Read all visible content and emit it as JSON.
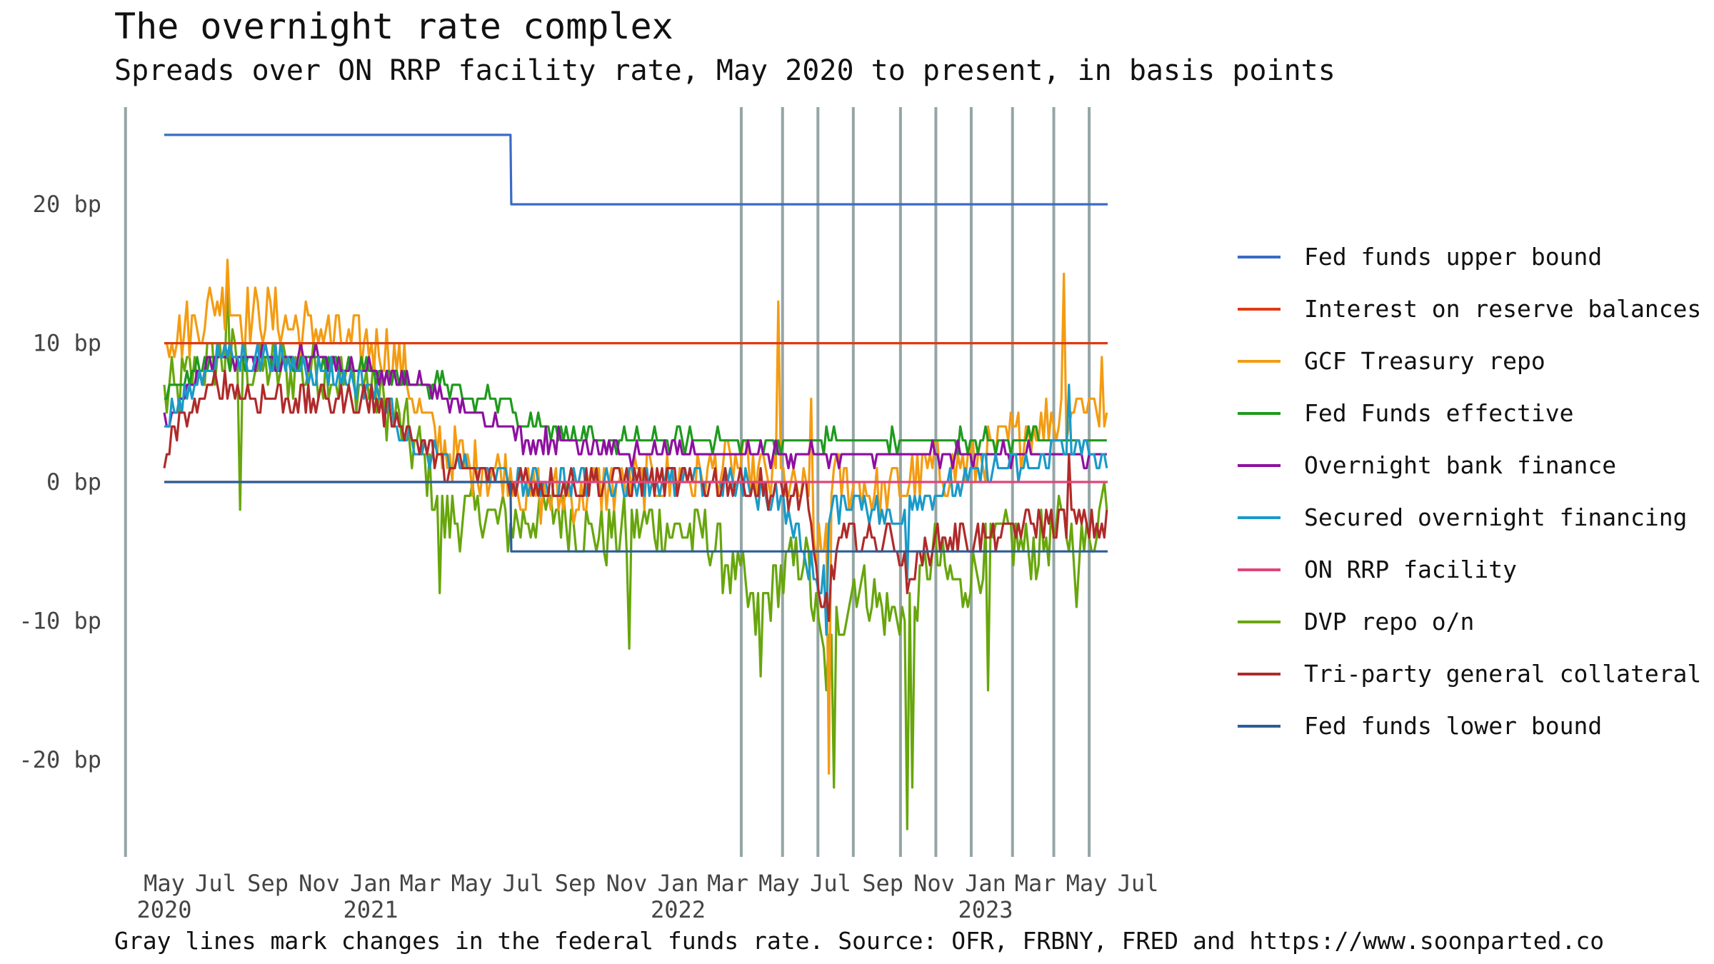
{
  "title": "The overnight rate complex",
  "subtitle": "Spreads over ON RRP facility rate, May 2020 to present, in basis points",
  "caption": "Gray lines mark changes in the federal funds rate. Source: OFR, FRBNY, FRED and https://www.soonparted.co",
  "colors": {
    "fomc_line": "#95a5a6",
    "axis_text": "#444444"
  },
  "chart_data": {
    "type": "line",
    "y_unit_suffix": " bp",
    "ylim": [
      -27,
      27
    ],
    "yticks": [
      20,
      10,
      0,
      -10,
      -20
    ],
    "x_start": "2020-05-01",
    "x_end": "2023-07-15",
    "data_end": "2023-05-26",
    "xticks": [
      {
        "date": "2020-05-01",
        "label": "May",
        "year": "2020"
      },
      {
        "date": "2020-07-01",
        "label": "Jul"
      },
      {
        "date": "2020-09-01",
        "label": "Sep"
      },
      {
        "date": "2020-11-01",
        "label": "Nov"
      },
      {
        "date": "2021-01-01",
        "label": "Jan",
        "year": "2021"
      },
      {
        "date": "2021-03-01",
        "label": "Mar"
      },
      {
        "date": "2021-05-01",
        "label": "May"
      },
      {
        "date": "2021-07-01",
        "label": "Jul"
      },
      {
        "date": "2021-09-01",
        "label": "Sep"
      },
      {
        "date": "2021-11-01",
        "label": "Nov"
      },
      {
        "date": "2022-01-01",
        "label": "Jan",
        "year": "2022"
      },
      {
        "date": "2022-03-01",
        "label": "Mar"
      },
      {
        "date": "2022-05-01",
        "label": "May"
      },
      {
        "date": "2022-07-01",
        "label": "Jul"
      },
      {
        "date": "2022-09-01",
        "label": "Sep"
      },
      {
        "date": "2022-11-01",
        "label": "Nov"
      },
      {
        "date": "2023-01-01",
        "label": "Jan",
        "year": "2023"
      },
      {
        "date": "2023-03-01",
        "label": "Mar"
      },
      {
        "date": "2023-05-01",
        "label": "May"
      },
      {
        "date": "2023-07-01",
        "label": "Jul"
      }
    ],
    "fomc_dates": [
      "2020-03-16",
      "2022-03-17",
      "2022-05-05",
      "2022-06-16",
      "2022-07-28",
      "2022-09-22",
      "2022-11-03",
      "2022-12-15",
      "2023-02-02",
      "2023-03-23",
      "2023-05-04"
    ],
    "legend_position": "right",
    "grid": false,
    "series": [
      {
        "name": "Fed funds upper bound",
        "color": "#3a6bc4",
        "kind": "step",
        "points": [
          [
            "2020-05-01",
            25
          ],
          [
            "2021-06-16",
            25
          ],
          [
            "2021-06-17",
            20
          ],
          [
            "2023-05-26",
            20
          ]
        ]
      },
      {
        "name": "Interest on reserve balances",
        "color": "#dd3a12",
        "kind": "step",
        "points": [
          [
            "2020-05-01",
            10
          ],
          [
            "2023-05-26",
            10
          ]
        ]
      },
      {
        "name": "GCF Treasury repo",
        "color": "#f39c12",
        "kind": "noisy",
        "points": [
          [
            "2020-05-01",
            11
          ],
          [
            "2020-06-01",
            11
          ],
          [
            "2020-07-01",
            13
          ],
          [
            "2020-08-01",
            12
          ],
          [
            "2020-09-01",
            12
          ],
          [
            "2020-10-01",
            11
          ],
          [
            "2020-11-01",
            11
          ],
          [
            "2020-12-01",
            10
          ],
          [
            "2021-01-01",
            10
          ],
          [
            "2021-02-01",
            9
          ],
          [
            "2021-03-01",
            5
          ],
          [
            "2021-04-01",
            2
          ],
          [
            "2021-05-01",
            1
          ],
          [
            "2021-06-15",
            1
          ],
          [
            "2021-07-01",
            -1
          ],
          [
            "2021-09-01",
            -1
          ],
          [
            "2021-11-01",
            0
          ],
          [
            "2022-01-01",
            0
          ],
          [
            "2022-03-01",
            1
          ],
          [
            "2022-05-01",
            0
          ],
          [
            "2022-06-01",
            -1
          ],
          [
            "2022-06-20",
            -6
          ],
          [
            "2022-07-01",
            0
          ],
          [
            "2022-08-01",
            0
          ],
          [
            "2022-09-01",
            -1
          ],
          [
            "2022-10-01",
            0
          ],
          [
            "2022-11-01",
            1
          ],
          [
            "2022-12-01",
            1
          ],
          [
            "2023-01-01",
            2
          ],
          [
            "2023-02-01",
            3
          ],
          [
            "2023-03-01",
            4
          ],
          [
            "2023-04-01",
            5
          ],
          [
            "2023-05-01",
            6
          ],
          [
            "2023-05-26",
            5
          ]
        ],
        "noise": 2.0,
        "spikes": [
          [
            "2020-07-15",
            16
          ],
          [
            "2022-05-01",
            13
          ],
          [
            "2022-06-30",
            -21
          ],
          [
            "2022-06-10",
            6
          ],
          [
            "2023-04-05",
            15
          ],
          [
            "2023-05-20",
            9
          ]
        ]
      },
      {
        "name": "Fed Funds effective",
        "color": "#1e9a1e",
        "kind": "noisy",
        "points": [
          [
            "2020-05-01",
            6
          ],
          [
            "2020-06-01",
            8
          ],
          [
            "2020-07-01",
            9
          ],
          [
            "2020-09-01",
            9
          ],
          [
            "2020-11-01",
            9
          ],
          [
            "2021-01-01",
            8
          ],
          [
            "2021-03-01",
            7
          ],
          [
            "2021-04-01",
            7
          ],
          [
            "2021-05-01",
            6
          ],
          [
            "2021-06-15",
            6
          ],
          [
            "2021-06-17",
            5
          ],
          [
            "2021-08-01",
            4
          ],
          [
            "2021-09-15",
            3
          ],
          [
            "2021-11-01",
            3
          ],
          [
            "2022-03-01",
            3
          ],
          [
            "2023-05-26",
            3
          ]
        ],
        "noise": 0.6,
        "spikes": []
      },
      {
        "name": "Overnight bank finance",
        "color": "#8e10a0",
        "kind": "noisy",
        "points": [
          [
            "2020-05-01",
            4
          ],
          [
            "2020-06-01",
            7
          ],
          [
            "2020-07-01",
            9
          ],
          [
            "2020-09-01",
            9
          ],
          [
            "2020-11-01",
            9
          ],
          [
            "2021-01-01",
            8
          ],
          [
            "2021-03-01",
            7
          ],
          [
            "2021-05-01",
            5
          ],
          [
            "2021-06-17",
            4
          ],
          [
            "2021-07-01",
            3
          ],
          [
            "2021-09-01",
            3
          ],
          [
            "2021-11-01",
            2
          ],
          [
            "2022-03-01",
            2
          ],
          [
            "2023-05-26",
            2
          ]
        ],
        "noise": 0.6,
        "spikes": []
      },
      {
        "name": "Secured overnight financing",
        "color": "#1a9ac8",
        "kind": "noisy",
        "points": [
          [
            "2020-05-01",
            4
          ],
          [
            "2020-07-01",
            9
          ],
          [
            "2020-09-01",
            9
          ],
          [
            "2020-11-01",
            8
          ],
          [
            "2021-01-01",
            7
          ],
          [
            "2021-03-01",
            2
          ],
          [
            "2021-05-01",
            1
          ],
          [
            "2021-06-17",
            0
          ],
          [
            "2021-09-01",
            0
          ],
          [
            "2022-01-01",
            0
          ],
          [
            "2022-03-01",
            0
          ],
          [
            "2022-05-01",
            -1
          ],
          [
            "2022-06-20",
            -8
          ],
          [
            "2022-07-01",
            -2
          ],
          [
            "2022-08-01",
            -1
          ],
          [
            "2022-09-15",
            -3
          ],
          [
            "2022-10-01",
            -1
          ],
          [
            "2022-11-01",
            -1
          ],
          [
            "2023-01-01",
            1
          ],
          [
            "2023-03-01",
            1
          ],
          [
            "2023-04-01",
            3
          ],
          [
            "2023-05-26",
            1
          ]
        ],
        "noise": 1.0,
        "spikes": [
          [
            "2022-06-28",
            -11
          ],
          [
            "2022-09-30",
            -7
          ],
          [
            "2023-04-10",
            7
          ]
        ]
      },
      {
        "name": "ON RRP facility",
        "color": "#e0457b",
        "kind": "step",
        "points": [
          [
            "2020-05-01",
            0
          ],
          [
            "2023-05-26",
            0
          ]
        ]
      },
      {
        "name": "DVP repo o/n",
        "color": "#67a60c",
        "kind": "noisy",
        "points": [
          [
            "2020-05-01",
            6
          ],
          [
            "2020-07-01",
            9
          ],
          [
            "2020-09-01",
            8
          ],
          [
            "2020-11-01",
            8
          ],
          [
            "2021-01-01",
            7
          ],
          [
            "2021-03-01",
            2
          ],
          [
            "2021-04-01",
            -3
          ],
          [
            "2021-05-01",
            -2
          ],
          [
            "2021-06-17",
            -3
          ],
          [
            "2021-08-01",
            -2
          ],
          [
            "2021-10-01",
            -4
          ],
          [
            "2021-12-01",
            -3
          ],
          [
            "2022-02-01",
            -4
          ],
          [
            "2022-03-17",
            -7
          ],
          [
            "2022-04-01",
            -10
          ],
          [
            "2022-05-01",
            -7
          ],
          [
            "2022-06-01",
            -5
          ],
          [
            "2022-06-25",
            -14
          ],
          [
            "2022-07-10",
            -10
          ],
          [
            "2022-08-01",
            -7
          ],
          [
            "2022-09-01",
            -9
          ],
          [
            "2022-10-01",
            -10
          ],
          [
            "2022-11-01",
            -5
          ],
          [
            "2022-12-01",
            -8
          ],
          [
            "2023-01-01",
            -5
          ],
          [
            "2023-02-01",
            -4
          ],
          [
            "2023-03-01",
            -5
          ],
          [
            "2023-04-01",
            -3
          ],
          [
            "2023-05-01",
            -5
          ],
          [
            "2023-05-26",
            0
          ]
        ],
        "noise": 2.2,
        "spikes": [
          [
            "2020-08-01",
            -2
          ],
          [
            "2020-07-15",
            15
          ],
          [
            "2021-03-25",
            -8
          ],
          [
            "2021-11-05",
            -12
          ],
          [
            "2022-04-10",
            -14
          ],
          [
            "2022-07-05",
            -22
          ],
          [
            "2022-09-30",
            -25
          ],
          [
            "2022-10-08",
            -22
          ],
          [
            "2023-01-05",
            -15
          ],
          [
            "2023-04-20",
            -9
          ]
        ]
      },
      {
        "name": "Tri-party general collateral",
        "color": "#b02a2a",
        "kind": "noisy",
        "points": [
          [
            "2020-05-01",
            2
          ],
          [
            "2020-06-01",
            5
          ],
          [
            "2020-07-01",
            7
          ],
          [
            "2020-09-01",
            6
          ],
          [
            "2020-11-01",
            6
          ],
          [
            "2021-01-01",
            6
          ],
          [
            "2021-03-01",
            3
          ],
          [
            "2021-04-01",
            1
          ],
          [
            "2021-06-17",
            0
          ],
          [
            "2021-09-01",
            0
          ],
          [
            "2022-03-01",
            0
          ],
          [
            "2022-06-01",
            -1
          ],
          [
            "2022-06-20",
            -9
          ],
          [
            "2022-07-15",
            -4
          ],
          [
            "2022-09-15",
            -4
          ],
          [
            "2022-10-01",
            -7
          ],
          [
            "2022-11-01",
            -4
          ],
          [
            "2023-01-01",
            -4
          ],
          [
            "2023-03-01",
            -3
          ],
          [
            "2023-05-26",
            -3
          ]
        ],
        "noise": 1.1,
        "spikes": [
          [
            "2022-07-01",
            -10
          ],
          [
            "2022-10-01",
            -8
          ],
          [
            "2023-04-12",
            2
          ]
        ]
      },
      {
        "name": "Fed funds lower bound",
        "color": "#2d5d96",
        "kind": "step",
        "points": [
          [
            "2020-05-01",
            0
          ],
          [
            "2021-06-16",
            0
          ],
          [
            "2021-06-17",
            -5
          ],
          [
            "2023-05-26",
            -5
          ]
        ]
      }
    ]
  }
}
